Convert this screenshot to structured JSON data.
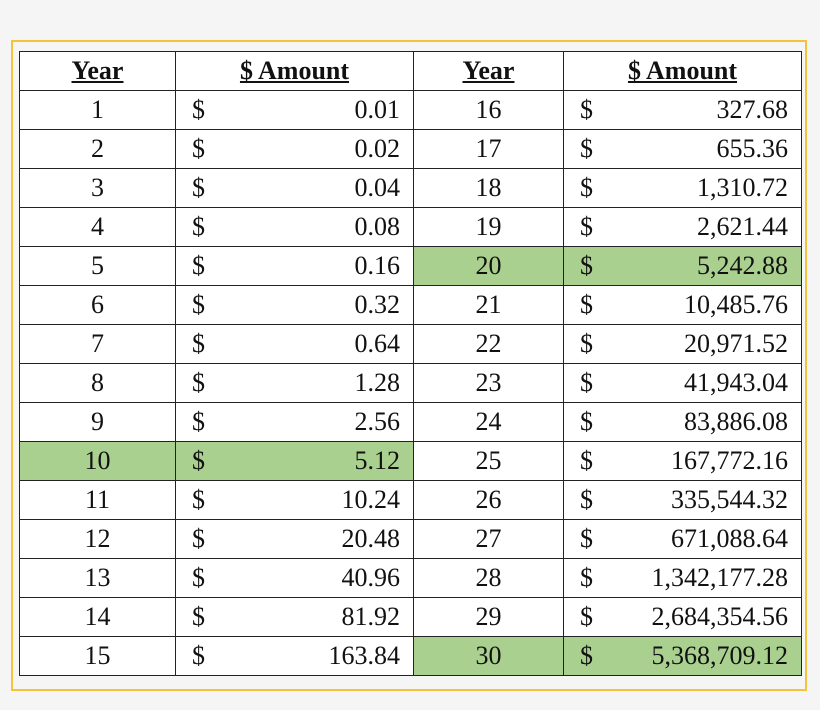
{
  "table": {
    "columns": [
      "Year",
      "$ Amount",
      "Year",
      "$ Amount"
    ],
    "currency": "$",
    "highlight_color": "#a9d08e",
    "left": [
      {
        "year": 1,
        "amount": "0.01",
        "highlight": false
      },
      {
        "year": 2,
        "amount": "0.02",
        "highlight": false
      },
      {
        "year": 3,
        "amount": "0.04",
        "highlight": false
      },
      {
        "year": 4,
        "amount": "0.08",
        "highlight": false
      },
      {
        "year": 5,
        "amount": "0.16",
        "highlight": false
      },
      {
        "year": 6,
        "amount": "0.32",
        "highlight": false
      },
      {
        "year": 7,
        "amount": "0.64",
        "highlight": false
      },
      {
        "year": 8,
        "amount": "1.28",
        "highlight": false
      },
      {
        "year": 9,
        "amount": "2.56",
        "highlight": false
      },
      {
        "year": 10,
        "amount": "5.12",
        "highlight": true
      },
      {
        "year": 11,
        "amount": "10.24",
        "highlight": false
      },
      {
        "year": 12,
        "amount": "20.48",
        "highlight": false
      },
      {
        "year": 13,
        "amount": "40.96",
        "highlight": false
      },
      {
        "year": 14,
        "amount": "81.92",
        "highlight": false
      },
      {
        "year": 15,
        "amount": "163.84",
        "highlight": false
      }
    ],
    "right": [
      {
        "year": 16,
        "amount": "327.68",
        "highlight": false
      },
      {
        "year": 17,
        "amount": "655.36",
        "highlight": false
      },
      {
        "year": 18,
        "amount": "1,310.72",
        "highlight": false
      },
      {
        "year": 19,
        "amount": "2,621.44",
        "highlight": false
      },
      {
        "year": 20,
        "amount": "5,242.88",
        "highlight": true
      },
      {
        "year": 21,
        "amount": "10,485.76",
        "highlight": false
      },
      {
        "year": 22,
        "amount": "20,971.52",
        "highlight": false
      },
      {
        "year": 23,
        "amount": "41,943.04",
        "highlight": false
      },
      {
        "year": 24,
        "amount": "83,886.08",
        "highlight": false
      },
      {
        "year": 25,
        "amount": "167,772.16",
        "highlight": false
      },
      {
        "year": 26,
        "amount": "335,544.32",
        "highlight": false
      },
      {
        "year": 27,
        "amount": "671,088.64",
        "highlight": false
      },
      {
        "year": 28,
        "amount": "1,342,177.28",
        "highlight": false
      },
      {
        "year": 29,
        "amount": "2,684,354.56",
        "highlight": false
      },
      {
        "year": 30,
        "amount": "5,368,709.12",
        "highlight": true
      }
    ]
  }
}
